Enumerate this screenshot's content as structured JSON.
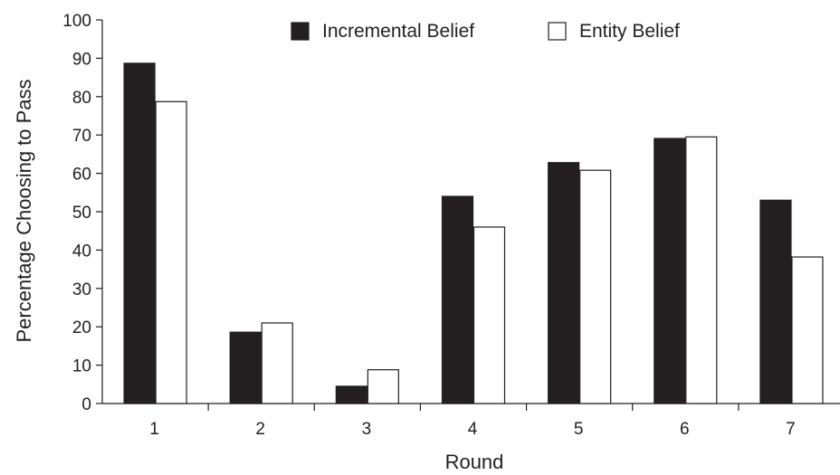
{
  "chart_data": {
    "type": "bar",
    "title": "",
    "xlabel": "Round",
    "ylabel": "Percentage Choosing to Pass",
    "categories": [
      "1",
      "2",
      "3",
      "4",
      "5",
      "6",
      "7"
    ],
    "yticks": [
      "0",
      "10",
      "20",
      "30",
      "40",
      "50",
      "60",
      "70",
      "80",
      "90",
      "100"
    ],
    "ylim": [
      0,
      100
    ],
    "grid": false,
    "legend_position": "top",
    "series": [
      {
        "name": "Incremental Belief",
        "color": "#231f20",
        "values": [
          88.7,
          18.6,
          4.5,
          54,
          62.8,
          69.1,
          53
        ]
      },
      {
        "name": "Entity Belief",
        "color": "#ffffff",
        "values": [
          78.7,
          21,
          8.8,
          46,
          60.8,
          69.5,
          38.2
        ]
      }
    ]
  }
}
